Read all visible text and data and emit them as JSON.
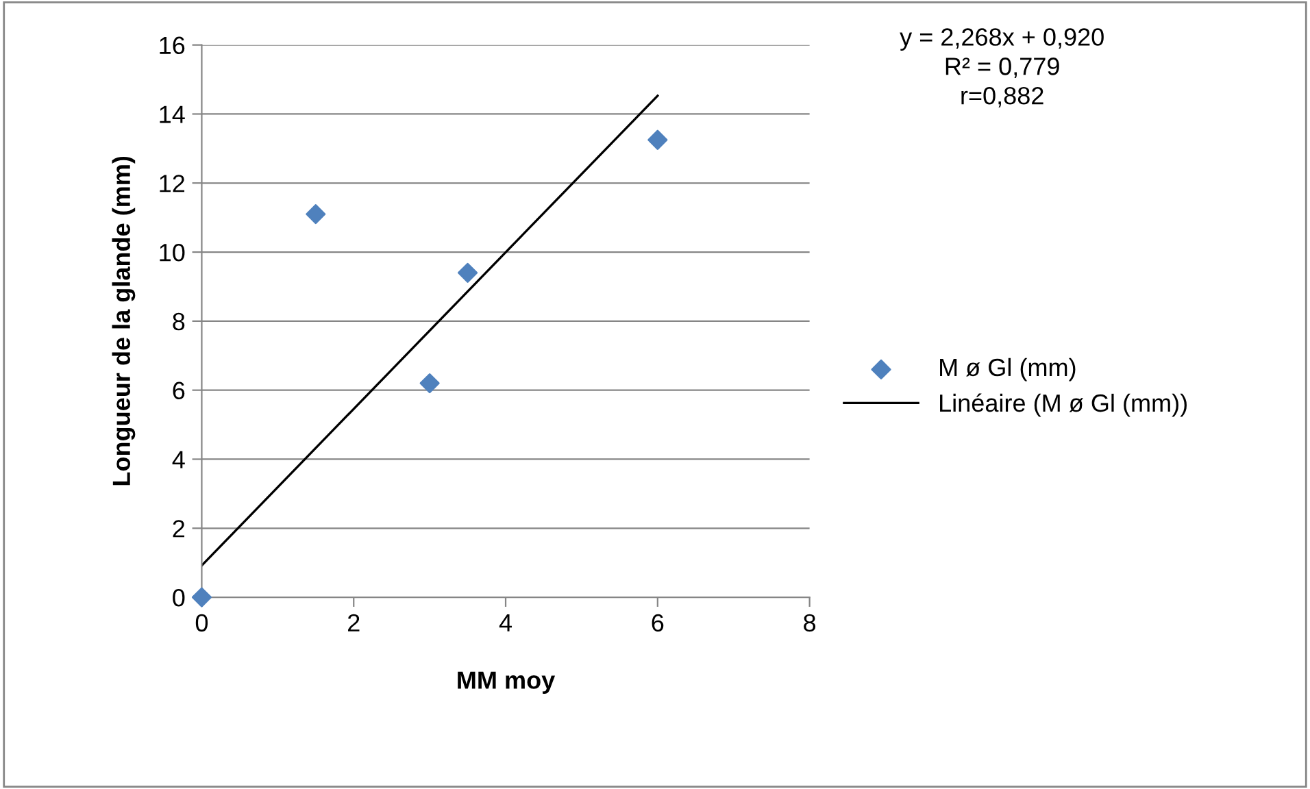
{
  "chart_data": {
    "type": "scatter",
    "xlabel": "MM moy",
    "ylabel": "Longueur de la glande (mm)",
    "xlim": [
      0,
      8
    ],
    "xticks": [
      0,
      2,
      4,
      6,
      8
    ],
    "ylim": [
      0,
      16
    ],
    "yticks": [
      0,
      2,
      4,
      6,
      8,
      10,
      12,
      14,
      16
    ],
    "grid": "y",
    "legend": "right",
    "marker": "diamond",
    "series": [
      {
        "name": "M ø Gl (mm)",
        "color": "#4f81bd",
        "x": [
          0,
          1.5,
          3,
          3.5,
          6
        ],
        "values": [
          0,
          11.1,
          6.2,
          9.4,
          13.25
        ]
      },
      {
        "name": "Linéaire (M ø Gl (mm))",
        "type": "line",
        "color": "#000000",
        "marker": "none",
        "line_style": "solid",
        "x": [
          0,
          6
        ],
        "values": [
          0.92,
          14.53
        ]
      }
    ],
    "annotations": [
      "y = 2,268x + 0,920",
      "R² = 0,779",
      "r=0,882"
    ]
  }
}
